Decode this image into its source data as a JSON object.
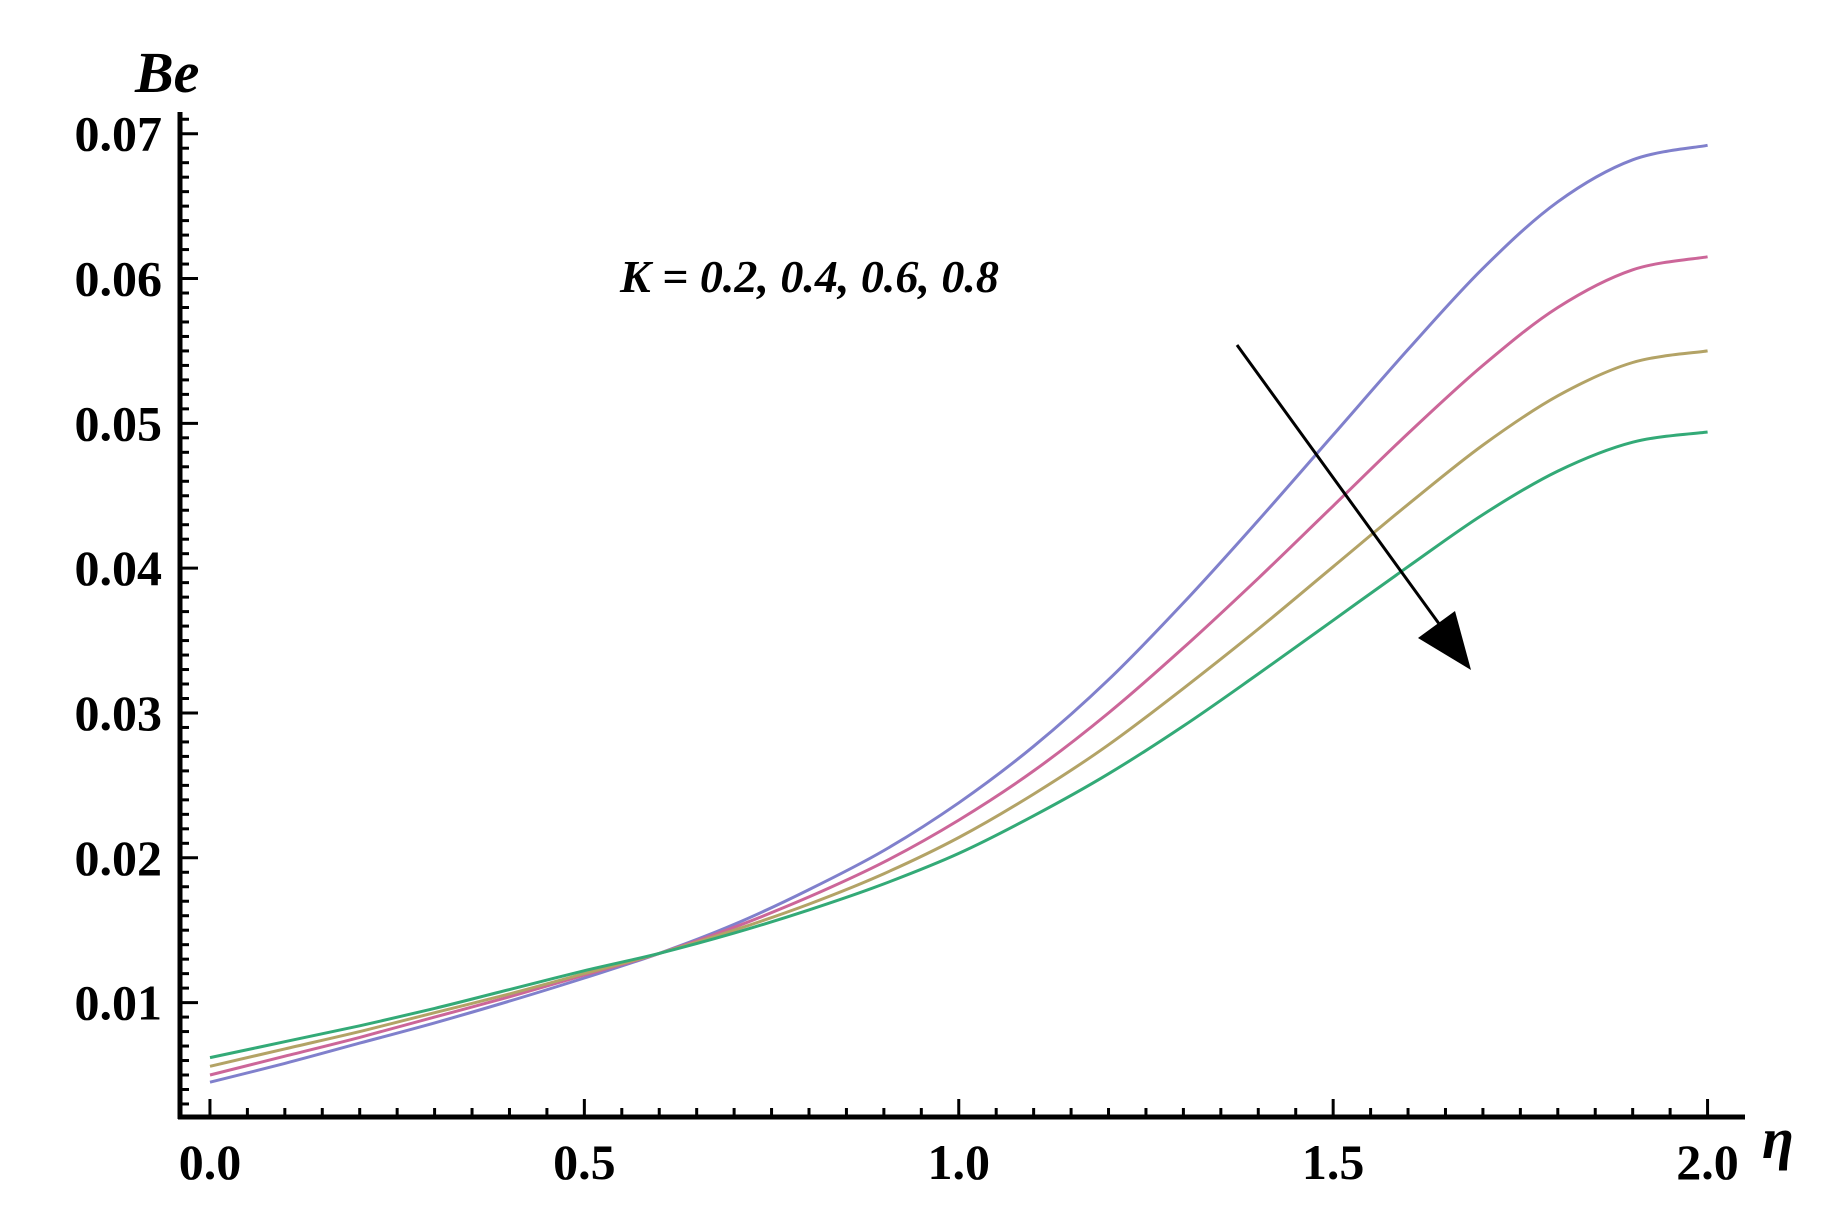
{
  "chart_data": {
    "type": "line",
    "xlabel": "η",
    "ylabel": "Be",
    "xlim": [
      -0.04,
      2.05
    ],
    "ylim": [
      0.0021,
      0.0715
    ],
    "x_ticks": [
      "0.0",
      "0.5",
      "1.0",
      "1.5",
      "2.0"
    ],
    "y_ticks": [
      "0.01",
      "0.02",
      "0.03",
      "0.04",
      "0.05",
      "0.06",
      "0.07"
    ],
    "grid": false,
    "annotation": "K = 0.2, 0.4, 0.6, 0.8",
    "series": [
      {
        "color": "#8080cc",
        "x": [
          0.0,
          0.1,
          0.2,
          0.3,
          0.4,
          0.5,
          0.6,
          0.7,
          0.8,
          0.9,
          1.0,
          1.1,
          1.2,
          1.3,
          1.4,
          1.5,
          1.6,
          1.7,
          1.8,
          1.9,
          2.0
        ],
        "y": [
          0.0045,
          0.0058,
          0.0072,
          0.0086,
          0.0101,
          0.0117,
          0.0134,
          0.0154,
          0.0178,
          0.0205,
          0.0238,
          0.0277,
          0.0323,
          0.0376,
          0.0433,
          0.0492,
          0.0551,
          0.0607,
          0.0653,
          0.0682,
          0.0692
        ]
      },
      {
        "color": "#cc6699",
        "x": [
          0.0,
          0.1,
          0.2,
          0.3,
          0.4,
          0.5,
          0.6,
          0.7,
          0.8,
          0.9,
          1.0,
          1.1,
          1.2,
          1.3,
          1.4,
          1.5,
          1.6,
          1.7,
          1.8,
          1.9,
          2.0
        ],
        "y": [
          0.005,
          0.0063,
          0.0076,
          0.009,
          0.0104,
          0.0119,
          0.0134,
          0.0152,
          0.0173,
          0.0197,
          0.0226,
          0.026,
          0.03,
          0.0345,
          0.0393,
          0.0443,
          0.0493,
          0.054,
          0.058,
          0.0606,
          0.0615
        ]
      },
      {
        "color": "#b3a366",
        "x": [
          0.0,
          0.1,
          0.2,
          0.3,
          0.4,
          0.5,
          0.6,
          0.7,
          0.8,
          0.9,
          1.0,
          1.1,
          1.2,
          1.3,
          1.4,
          1.5,
          1.6,
          1.7,
          1.8,
          1.9,
          2.0
        ],
        "y": [
          0.0056,
          0.0068,
          0.008,
          0.0093,
          0.0106,
          0.012,
          0.0134,
          0.015,
          0.0168,
          0.0189,
          0.0214,
          0.0244,
          0.0278,
          0.0317,
          0.0358,
          0.0401,
          0.0444,
          0.0485,
          0.0519,
          0.0542,
          0.055
        ]
      },
      {
        "color": "#33aa77",
        "x": [
          0.0,
          0.1,
          0.2,
          0.3,
          0.4,
          0.5,
          0.6,
          0.7,
          0.8,
          0.9,
          1.0,
          1.1,
          1.2,
          1.3,
          1.4,
          1.5,
          1.6,
          1.7,
          1.8,
          1.9,
          2.0
        ],
        "y": [
          0.0062,
          0.0073,
          0.0084,
          0.0096,
          0.0109,
          0.0122,
          0.0134,
          0.0148,
          0.0164,
          0.0182,
          0.0203,
          0.0229,
          0.0258,
          0.0291,
          0.0327,
          0.0364,
          0.0401,
          0.0437,
          0.0467,
          0.0487,
          0.0494
        ]
      }
    ]
  }
}
